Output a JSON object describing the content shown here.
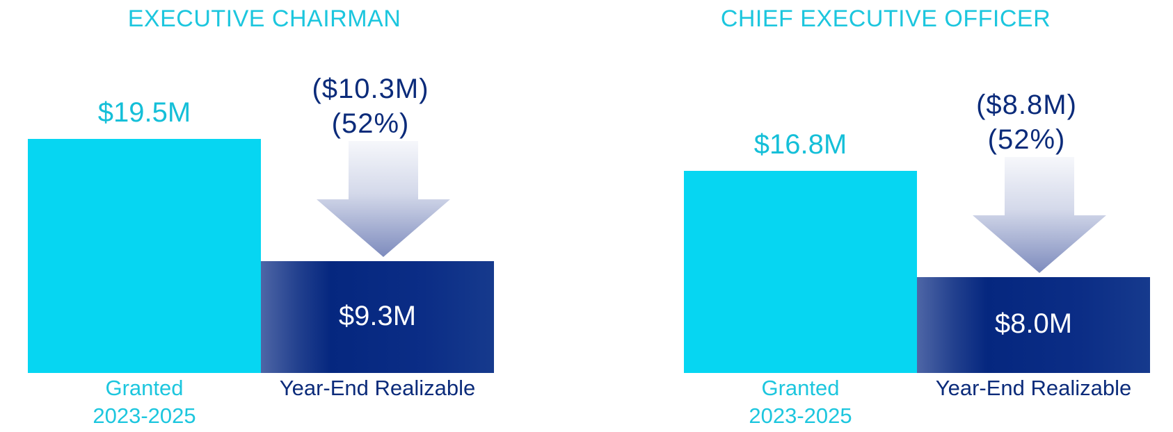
{
  "chart_data": [
    {
      "type": "bar",
      "title": "EXECUTIVE CHAIRMAN",
      "categories": [
        {
          "line1": "Granted",
          "line2": "2023-2025"
        },
        {
          "line1": "Year-End Realizable",
          "line2": ""
        }
      ],
      "values": [
        19.5,
        9.3
      ],
      "value_labels": [
        "$19.5M",
        "$9.3M"
      ],
      "change": {
        "amount": -10.3,
        "amount_label": "($10.3M)",
        "percent": 52,
        "percent_label": "(52%)"
      },
      "ylim": [
        0,
        20
      ],
      "colors": [
        "#06d6f2",
        "#05277f"
      ]
    },
    {
      "type": "bar",
      "title": "CHIEF EXECUTIVE OFFICER",
      "categories": [
        {
          "line1": "Granted",
          "line2": "2023-2025"
        },
        {
          "line1": "Year-End Realizable",
          "line2": ""
        }
      ],
      "values": [
        16.8,
        8.0
      ],
      "value_labels": [
        "$16.8M",
        "$8.0M"
      ],
      "change": {
        "amount": -8.8,
        "amount_label": "($8.8M)",
        "percent": 52,
        "percent_label": "(52%)"
      },
      "ylim": [
        0,
        20
      ],
      "colors": [
        "#06d6f2",
        "#05277f"
      ]
    }
  ]
}
